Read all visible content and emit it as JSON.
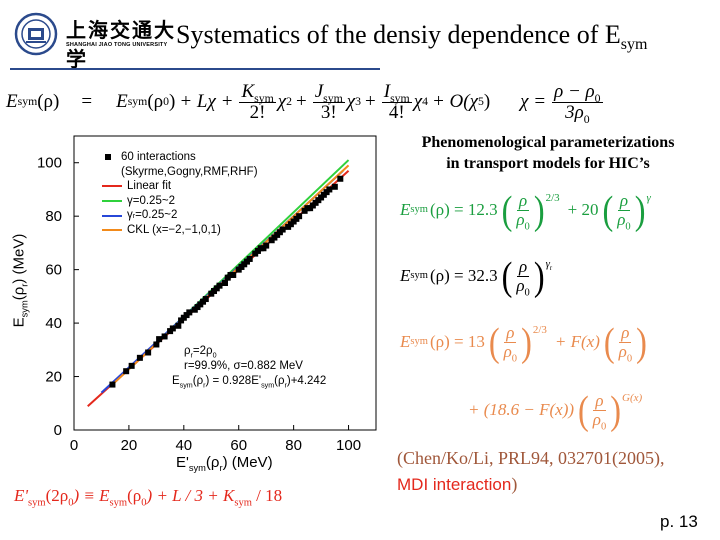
{
  "slide": {
    "title_main": "Systematics of the densiy dependence of E",
    "title_sub": "sym",
    "logo_text_cn": "上海交通大学",
    "logo_text_en": "SHANGHAI JIAO TONG UNIVERSITY",
    "page_number": "p. 13"
  },
  "header_equation": {
    "lhs": "E",
    "lhs_sub": "sym",
    "lhs_arg": "(ρ)",
    "eq": "=",
    "t1": "E",
    "t1_sub": "sym",
    "t1_arg": "(ρ",
    "t1_arg_sub": "0",
    "t1_arg_close": ")",
    "plus_L": "+ Lχ +",
    "k_num": "K",
    "k_num_sub": "sym",
    "k_den": "2!",
    "chi2": "χ",
    "chi2_sup": "2",
    "plus2": "+",
    "j_num": "J",
    "j_num_sub": "sym",
    "j_den": "3!",
    "chi3": "χ",
    "chi3_sup": "3",
    "plus3": "+",
    "i_num": "I",
    "i_num_sub": "sym",
    "i_den": "4!",
    "chi4": "χ",
    "chi4_sup": "4",
    "o_term": "+ O(χ",
    "o_sup": "5",
    "o_close": ")",
    "chi_def": "χ =",
    "chi_num": "ρ − ρ",
    "chi_num_sub": "0",
    "chi_den": "3ρ",
    "chi_den_sub": "0"
  },
  "chart_data": {
    "type": "scatter",
    "xlabel_main": "E'",
    "xlabel_sub": "sym",
    "xlabel_rest": "(ρ",
    "xlabel_sub2": "r",
    "xlabel_end": ") (MeV)",
    "ylabel_main": "E",
    "ylabel_sub": "sym",
    "ylabel_rest": "(ρ",
    "ylabel_sub2": "r",
    "ylabel_end": ") (MeV)",
    "xlim": [
      0,
      110
    ],
    "ylim": [
      0,
      110
    ],
    "x_ticks": [
      "0",
      "20",
      "40",
      "60",
      "80",
      "100"
    ],
    "y_ticks": [
      "0",
      "20",
      "40",
      "60",
      "80",
      "100"
    ],
    "x_tick_values": [
      0,
      20,
      40,
      60,
      80,
      100
    ],
    "y_tick_values": [
      0,
      20,
      40,
      60,
      80,
      100
    ],
    "legend": [
      {
        "label": "60 interactions",
        "marker": "square",
        "color": "#000000"
      },
      {
        "label": "(Skyrme,Gogny,RMF,RHF)",
        "marker": "none",
        "color": "#000000"
      },
      {
        "label": "Linear fit",
        "marker": "line",
        "color": "#e4281c"
      },
      {
        "label": "γ=0.25~2",
        "marker": "line",
        "color": "#2fd13c"
      },
      {
        "label": "γ",
        "label_sub": "r",
        "label_rest": "=0.25~2",
        "marker": "line",
        "color": "#2747d8"
      },
      {
        "label": "CKL (x=−2,−1,0,1)",
        "marker": "line",
        "color": "#f28a1a"
      }
    ],
    "annotations": {
      "rho": "ρ",
      "rho_sub": "r",
      "rho_eq": "=2ρ",
      "rho_eq_sub": "0",
      "stats": "r=99.9%, σ=0.882 MeV",
      "fit_a": "E",
      "fit_a_sub": "sym",
      "fit_b": "(ρ",
      "fit_b_sub": "r",
      "fit_c": ") = 0.928E'",
      "fit_c_sub": "sym",
      "fit_d": "(ρ",
      "fit_d_sub": "r",
      "fit_e": ")+4.242"
    },
    "series": [
      {
        "name": "60 interactions",
        "x": [
          14,
          19,
          21,
          24,
          27,
          30,
          31,
          33,
          35,
          36,
          38,
          39,
          40,
          41,
          42,
          44,
          45,
          46,
          47,
          48,
          50,
          51,
          52,
          53,
          55,
          56,
          57,
          58,
          60,
          61,
          62,
          63,
          64,
          66,
          67,
          68,
          69,
          70,
          72,
          73,
          74,
          75,
          76,
          78,
          79,
          80,
          81,
          82,
          84,
          85,
          86,
          87,
          88,
          89,
          90,
          91,
          92,
          93,
          95,
          97
        ],
        "y": [
          17,
          22,
          24,
          27,
          29,
          32,
          34,
          35,
          37,
          38,
          39,
          41,
          42,
          43,
          44,
          45,
          46,
          47,
          48,
          49,
          51,
          52,
          53,
          54,
          55,
          57,
          58,
          58,
          60,
          61,
          62,
          63,
          64,
          66,
          67,
          68,
          68,
          69,
          71,
          72,
          73,
          74,
          75,
          76,
          77,
          78,
          79,
          80,
          82,
          83,
          83,
          84,
          85,
          86,
          87,
          88,
          89,
          90,
          91,
          94
        ]
      }
    ],
    "lines": [
      {
        "name": "Linear fit",
        "color": "#e4281c",
        "x": [
          5,
          100
        ],
        "y": [
          8.9,
          97.0
        ]
      },
      {
        "name": "γ=0.25~2",
        "color": "#2fd13c",
        "x": [
          18,
          100
        ],
        "y": [
          21,
          101
        ]
      },
      {
        "name": "γr=0.25~2",
        "color": "#2747d8",
        "x": [
          10,
          98
        ],
        "y": [
          14,
          97
        ]
      },
      {
        "name": "CKL (x=−2,−1,0,1)",
        "color": "#f28a1a",
        "x": [
          14,
          100
        ],
        "y": [
          17,
          99
        ]
      }
    ]
  },
  "right_panel": {
    "heading_line1": "Phenomenological parameterizations",
    "heading_line2": "in transport models for HIC’s",
    "eq1_lhs": "E",
    "eq1_sub": "sym",
    "eq1_arg": "(ρ) = 12.3",
    "eq1_exp": "2/3",
    "eq1_plus": "+ 20",
    "eq1_exp2": "γ",
    "eq2_lhs": "E",
    "eq2_sub": "sym",
    "eq2_arg": "(ρ) = 32.3",
    "eq2_exp": "γ",
    "eq2_exp_sub": "r",
    "eq3_lhs": "E",
    "eq3_sub": "sym",
    "eq3_arg": "(ρ) = 13",
    "eq3_exp": "2/3",
    "eq3_plus": "+ F(x)",
    "eq4_lead": "+ (18.6 − F(x))",
    "eq4_exp": "G(x)",
    "rho": "ρ",
    "rho0": "ρ",
    "rho0_sub": "0",
    "citation": "(Chen/Ko/Li, PRL94, 032701(2005),",
    "citation2": "MDI interaction",
    "citation2_close": ")"
  },
  "bottom_equation": {
    "a": "E'",
    "a_sub": "sym",
    "b": "(2ρ",
    "b_sub": "0",
    "c": ") ≡ E",
    "c_sub": "sym",
    "d": "(ρ",
    "d_sub": "0",
    "e": ") + L / 3 + K",
    "e_sub": "sym",
    "f": " / 18"
  }
}
